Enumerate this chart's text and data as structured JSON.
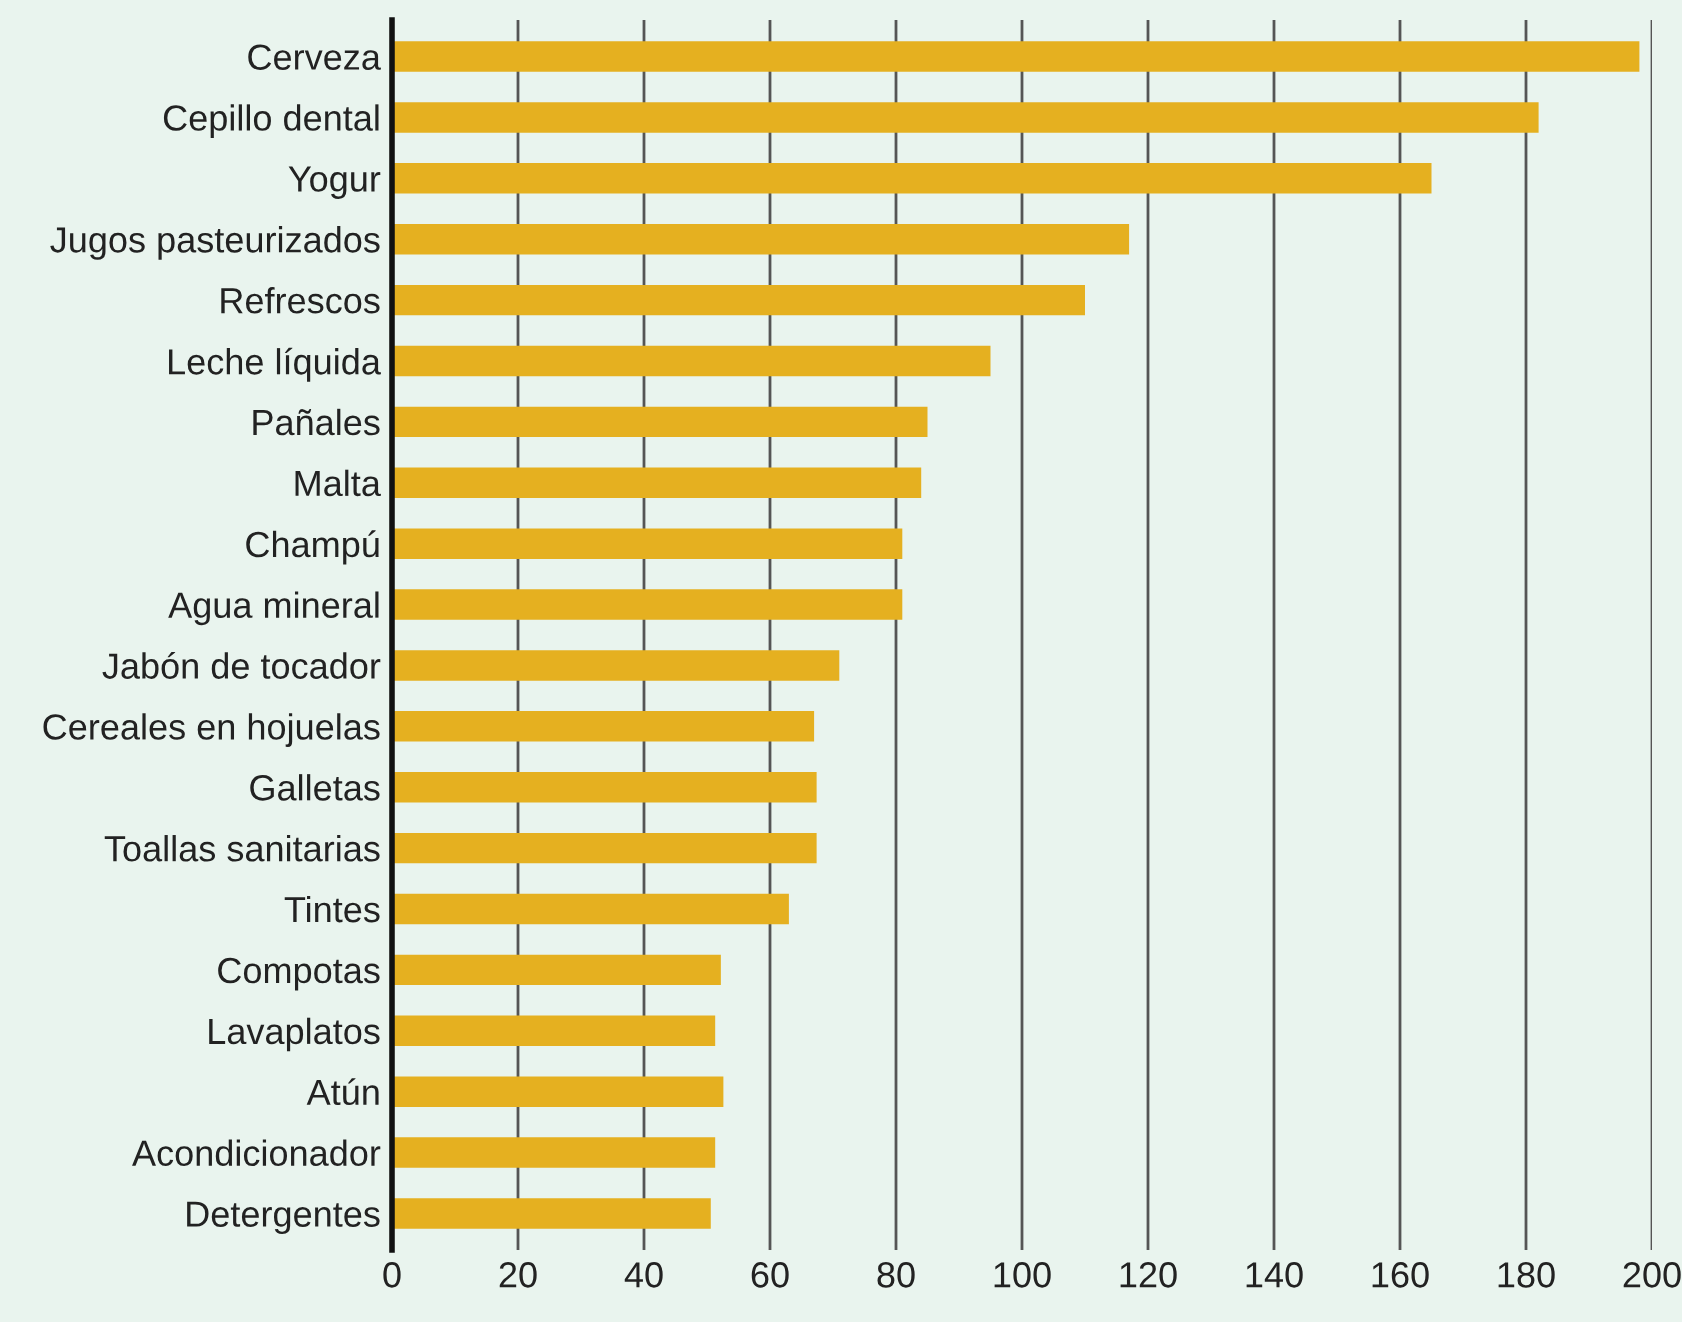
{
  "chart_data": {
    "type": "bar",
    "orientation": "horizontal",
    "categories": [
      "Cerveza",
      "Cepillo dental",
      "Yogur",
      "Jugos pasteurizados",
      "Refrescos",
      "Leche líquida",
      "Pañales",
      "Malta",
      "Champú",
      "Agua mineral",
      "Jabón de tocador",
      "Cereales en hojuelas",
      "Galletas",
      "Toallas sanitarias",
      "Tintes",
      "Compotas",
      "Lavaplatos",
      "Atún",
      "Acondicionador",
      "Detergentes"
    ],
    "values": [
      198,
      182,
      165,
      117,
      110,
      95,
      85,
      84,
      81,
      81,
      71,
      67,
      67.4,
      67.4,
      63,
      52.2,
      51.3,
      52.6,
      51.3,
      50.6
    ],
    "color": "#e5b020",
    "xlim": [
      0,
      200
    ],
    "xticks": [
      0,
      20,
      40,
      60,
      80,
      100,
      120,
      140,
      160,
      180,
      200
    ],
    "grid": "x"
  }
}
